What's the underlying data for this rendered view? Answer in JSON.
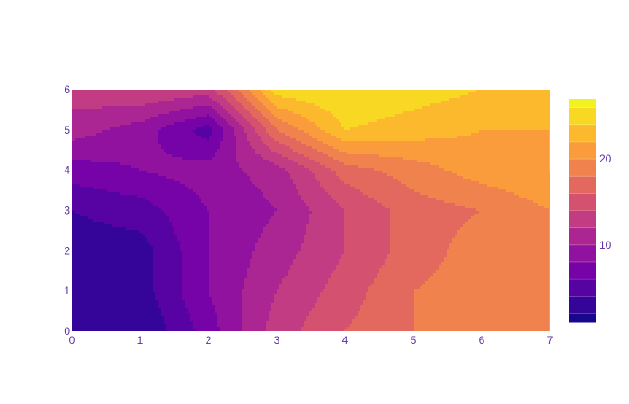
{
  "chart_data": {
    "type": "contour",
    "title": "",
    "xlabel": "",
    "ylabel": "",
    "x_range": [
      0,
      7
    ],
    "y_range": [
      0,
      6
    ],
    "x_ticks": [
      "0",
      "1",
      "2",
      "3",
      "4",
      "5",
      "6",
      "7"
    ],
    "y_ticks": [
      "0",
      "1",
      "2",
      "3",
      "4",
      "5",
      "6"
    ],
    "colorscale": "Plasma",
    "colorscale_colors": [
      "#0d0887",
      "#46039f",
      "#7201a8",
      "#9c179e",
      "#bd3786",
      "#d8576b",
      "#ed7953",
      "#fb9f3a",
      "#fdca26",
      "#f0f921"
    ],
    "z_range": [
      1,
      27
    ],
    "contour_levels": [
      2,
      4,
      6,
      8,
      10,
      12,
      14,
      16,
      18,
      20,
      22,
      24,
      26
    ],
    "colorbar": {
      "ticks": [
        "10",
        "20"
      ],
      "tick_values": [
        10,
        20
      ]
    },
    "z_estimated": [
      [
        2,
        2,
        7,
        13,
        16,
        18,
        19,
        20
      ],
      [
        2,
        3,
        8,
        12,
        15,
        18,
        19,
        20
      ],
      [
        3,
        3,
        8,
        11,
        14,
        17,
        19,
        20
      ],
      [
        4,
        5,
        8,
        10,
        14,
        17,
        18,
        20
      ],
      [
        7,
        8,
        9,
        11,
        17,
        19,
        21,
        22
      ],
      [
        11,
        9,
        5,
        18,
        24,
        23,
        22,
        22
      ],
      [
        13,
        14,
        13,
        25,
        26,
        25,
        24,
        24
      ]
    ]
  }
}
